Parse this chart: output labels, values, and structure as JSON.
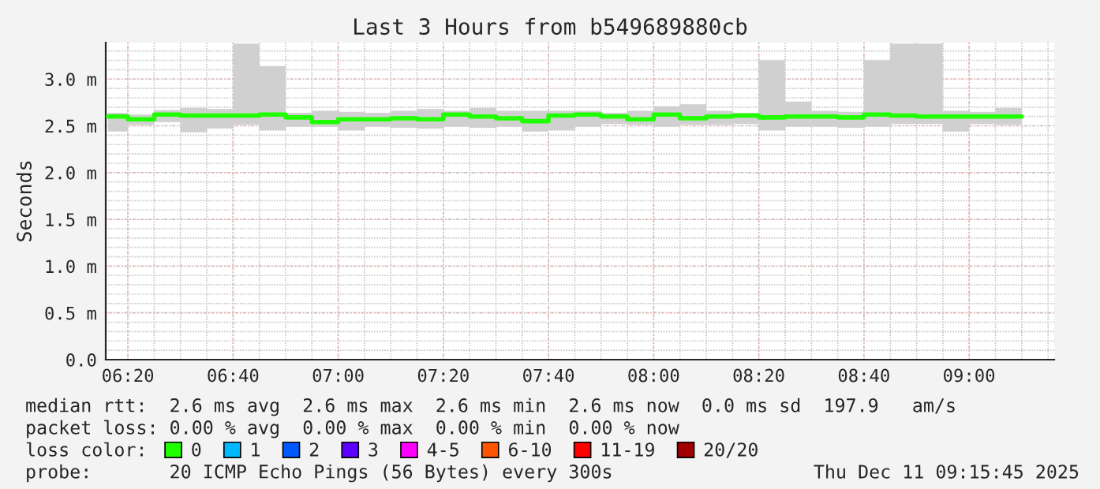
{
  "chart_data": {
    "type": "step",
    "title": "Last 3 Hours from b549689880cb",
    "ylabel": "Seconds",
    "x": [
      6.27,
      6.3333,
      6.4167,
      6.5,
      6.5833,
      6.6667,
      6.75,
      6.8333,
      6.9167,
      7.0,
      7.0833,
      7.1667,
      7.25,
      7.3333,
      7.4167,
      7.5,
      7.5833,
      7.6667,
      7.75,
      7.8333,
      7.9167,
      8.0,
      8.0833,
      8.1667,
      8.25,
      8.3333,
      8.4167,
      8.5,
      8.5833,
      8.6667,
      8.75,
      8.8333,
      8.9167,
      9.0,
      9.0833,
      9.1667
    ],
    "series": [
      {
        "name": "0",
        "color": "#20ff00",
        "values": [
          2.6,
          2.57,
          2.62,
          2.61,
          2.61,
          2.61,
          2.62,
          2.59,
          2.54,
          2.57,
          2.57,
          2.58,
          2.57,
          2.62,
          2.6,
          2.58,
          2.55,
          2.61,
          2.62,
          2.6,
          2.57,
          2.62,
          2.58,
          2.6,
          2.61,
          2.59,
          2.6,
          2.6,
          2.59,
          2.62,
          2.61,
          2.6,
          2.6,
          2.6,
          2.6,
          2.6
        ],
        "lower": [
          2.44,
          2.51,
          2.54,
          2.43,
          2.47,
          2.51,
          2.45,
          2.49,
          2.49,
          2.45,
          2.49,
          2.48,
          2.47,
          2.49,
          2.48,
          2.49,
          2.44,
          2.45,
          2.49,
          2.52,
          2.51,
          2.49,
          2.51,
          2.51,
          2.52,
          2.45,
          2.49,
          2.49,
          2.48,
          2.49,
          2.52,
          2.52,
          2.44,
          2.52,
          2.51,
          2.51
        ],
        "upper": [
          2.64,
          2.62,
          2.67,
          2.69,
          2.68,
          3.38,
          3.14,
          2.64,
          2.66,
          2.65,
          2.64,
          2.66,
          2.68,
          2.66,
          2.69,
          2.66,
          2.66,
          2.66,
          2.66,
          2.64,
          2.66,
          2.71,
          2.73,
          2.66,
          2.64,
          3.2,
          2.76,
          2.66,
          2.65,
          3.2,
          3.38,
          3.38,
          2.66,
          2.65,
          2.69,
          2.69
        ]
      },
      {
        "name": "1",
        "color": "#00b8ff",
        "values": [
          null,
          null,
          null,
          null,
          null,
          null,
          null,
          null,
          null,
          null,
          null,
          null,
          null,
          null,
          null,
          null,
          null,
          null,
          null,
          null,
          null,
          null,
          null,
          null,
          null,
          null,
          null,
          null,
          null,
          null,
          null,
          null,
          null,
          null,
          null,
          null
        ]
      },
      {
        "name": "2",
        "color": "#0059ff",
        "values": [
          null,
          null,
          null,
          null,
          null,
          null,
          null,
          null,
          null,
          null,
          null,
          null,
          null,
          null,
          null,
          null,
          null,
          null,
          null,
          null,
          null,
          null,
          null,
          null,
          null,
          null,
          null,
          null,
          null,
          null,
          null,
          null,
          null,
          null,
          null,
          null
        ]
      },
      {
        "name": "3",
        "color": "#5e00ff",
        "values": [
          null,
          null,
          null,
          null,
          null,
          null,
          null,
          null,
          null,
          null,
          null,
          null,
          null,
          null,
          null,
          null,
          null,
          null,
          null,
          null,
          null,
          null,
          null,
          null,
          null,
          null,
          null,
          null,
          null,
          null,
          null,
          null,
          null,
          null,
          null,
          null
        ]
      },
      {
        "name": "4-5",
        "color": "#ff00ff",
        "values": [
          null,
          null,
          null,
          null,
          null,
          null,
          null,
          null,
          null,
          null,
          null,
          null,
          null,
          null,
          null,
          null,
          null,
          null,
          null,
          null,
          null,
          null,
          null,
          null,
          null,
          null,
          null,
          null,
          null,
          null,
          null,
          null,
          null,
          null,
          null,
          null
        ]
      },
      {
        "name": "6-10",
        "color": "#ff5500",
        "values": [
          null,
          null,
          null,
          null,
          null,
          null,
          null,
          null,
          null,
          null,
          null,
          null,
          null,
          null,
          null,
          null,
          null,
          null,
          null,
          null,
          null,
          null,
          null,
          null,
          null,
          null,
          null,
          null,
          null,
          null,
          null,
          null,
          null,
          null,
          null,
          null
        ]
      },
      {
        "name": "11-19",
        "color": "#ff0000",
        "values": [
          null,
          null,
          null,
          null,
          null,
          null,
          null,
          null,
          null,
          null,
          null,
          null,
          null,
          null,
          null,
          null,
          null,
          null,
          null,
          null,
          null,
          null,
          null,
          null,
          null,
          null,
          null,
          null,
          null,
          null,
          null,
          null,
          null,
          null,
          null,
          null
        ]
      },
      {
        "name": "20/20",
        "color": "#a10000",
        "values": [
          null,
          null,
          null,
          null,
          null,
          null,
          null,
          null,
          null,
          null,
          null,
          null,
          null,
          null,
          null,
          null,
          null,
          null,
          null,
          null,
          null,
          null,
          null,
          null,
          null,
          null,
          null,
          null,
          null,
          null,
          null,
          null,
          null,
          null,
          null,
          null
        ]
      }
    ],
    "legend_title": "loss color:",
    "legend": "bottom",
    "xlim": [
      6.263,
      9.27
    ],
    "xticks": [
      {
        "value": 6.3333,
        "label": "06:20"
      },
      {
        "value": 6.6667,
        "label": "06:40"
      },
      {
        "value": 7.0,
        "label": "07:00"
      },
      {
        "value": 7.3333,
        "label": "07:20"
      },
      {
        "value": 7.6667,
        "label": "07:40"
      },
      {
        "value": 8.0,
        "label": "08:00"
      },
      {
        "value": 8.3333,
        "label": "08:20"
      },
      {
        "value": 8.6667,
        "label": "08:40"
      },
      {
        "value": 9.0,
        "label": "09:00"
      }
    ],
    "ylim": [
      0,
      3.39
    ],
    "yticks": [
      {
        "value": 0,
        "label": "0.0"
      },
      {
        "value": 0.5,
        "label": "0.5 m"
      },
      {
        "value": 1.0,
        "label": "1.0 m"
      },
      {
        "value": 1.5,
        "label": "1.5 m"
      },
      {
        "value": 2.0,
        "label": "2.0 m"
      },
      {
        "value": 2.5,
        "label": "2.5 m"
      },
      {
        "value": 3.0,
        "label": "3.0 m"
      }
    ],
    "grid": true,
    "annotations": [
      "median rtt:  2.6 ms avg  2.6 ms max  2.6 ms min  2.6 ms now  0.0 ms sd  197.9   am/s",
      "packet loss: 0.00 % avg  0.00 % max  0.00 % min  0.00 % now",
      "probe:       20 ICMP Echo Pings (56 Bytes) every 300s",
      "Thu Dec 11 09:15:45 2025"
    ]
  }
}
